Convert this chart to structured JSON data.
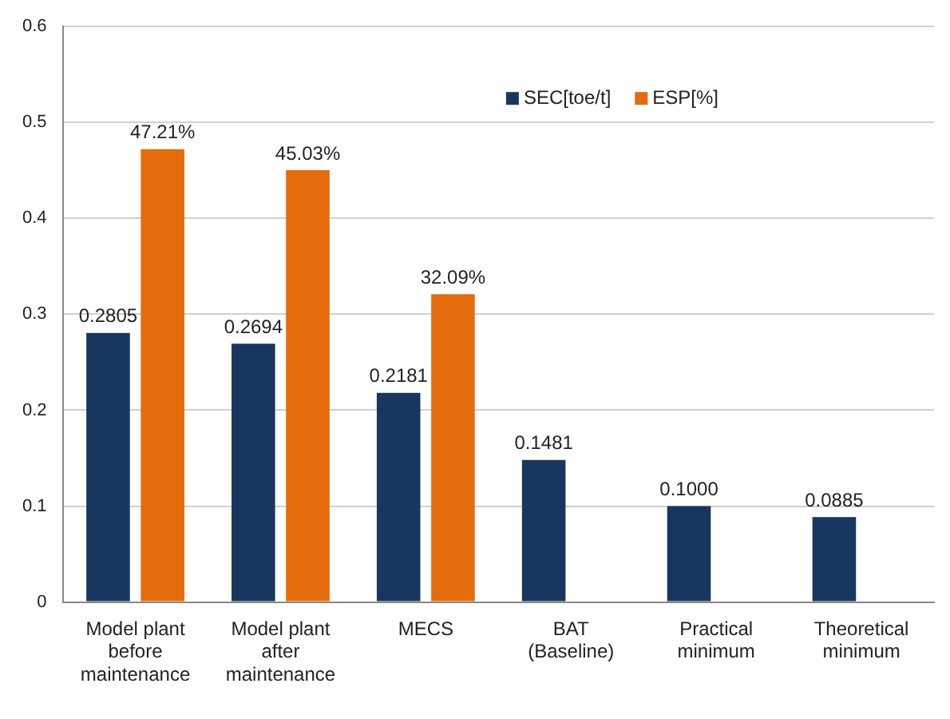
{
  "chart_data": {
    "type": "bar",
    "categories": [
      "Model plant before maintenance",
      "Model plant after maintenance",
      "MECS",
      "BAT (Baseline)",
      "Practical minimum",
      "Theoretical minimum"
    ],
    "series": [
      {
        "name": "SEC[toe/t]",
        "color": "#17375e",
        "values": [
          0.2805,
          0.2694,
          0.2181,
          0.1481,
          0.1,
          0.0885
        ],
        "value_labels": [
          "0.2805",
          "0.2694",
          "0.2181",
          "0.1481",
          "0.1000",
          "0.0885"
        ]
      },
      {
        "name": "ESP[%]",
        "color": "#e46c0a",
        "values": [
          0.4721,
          0.4503,
          0.3209,
          null,
          null,
          null
        ],
        "value_labels": [
          "47.21%",
          "45.03%",
          "32.09%",
          null,
          null,
          null
        ]
      }
    ],
    "ylim": [
      0,
      0.6
    ],
    "yticks": [
      0,
      0.1,
      0.2,
      0.3,
      0.4,
      0.5,
      0.6
    ],
    "grid": "y",
    "legend": "top right"
  }
}
